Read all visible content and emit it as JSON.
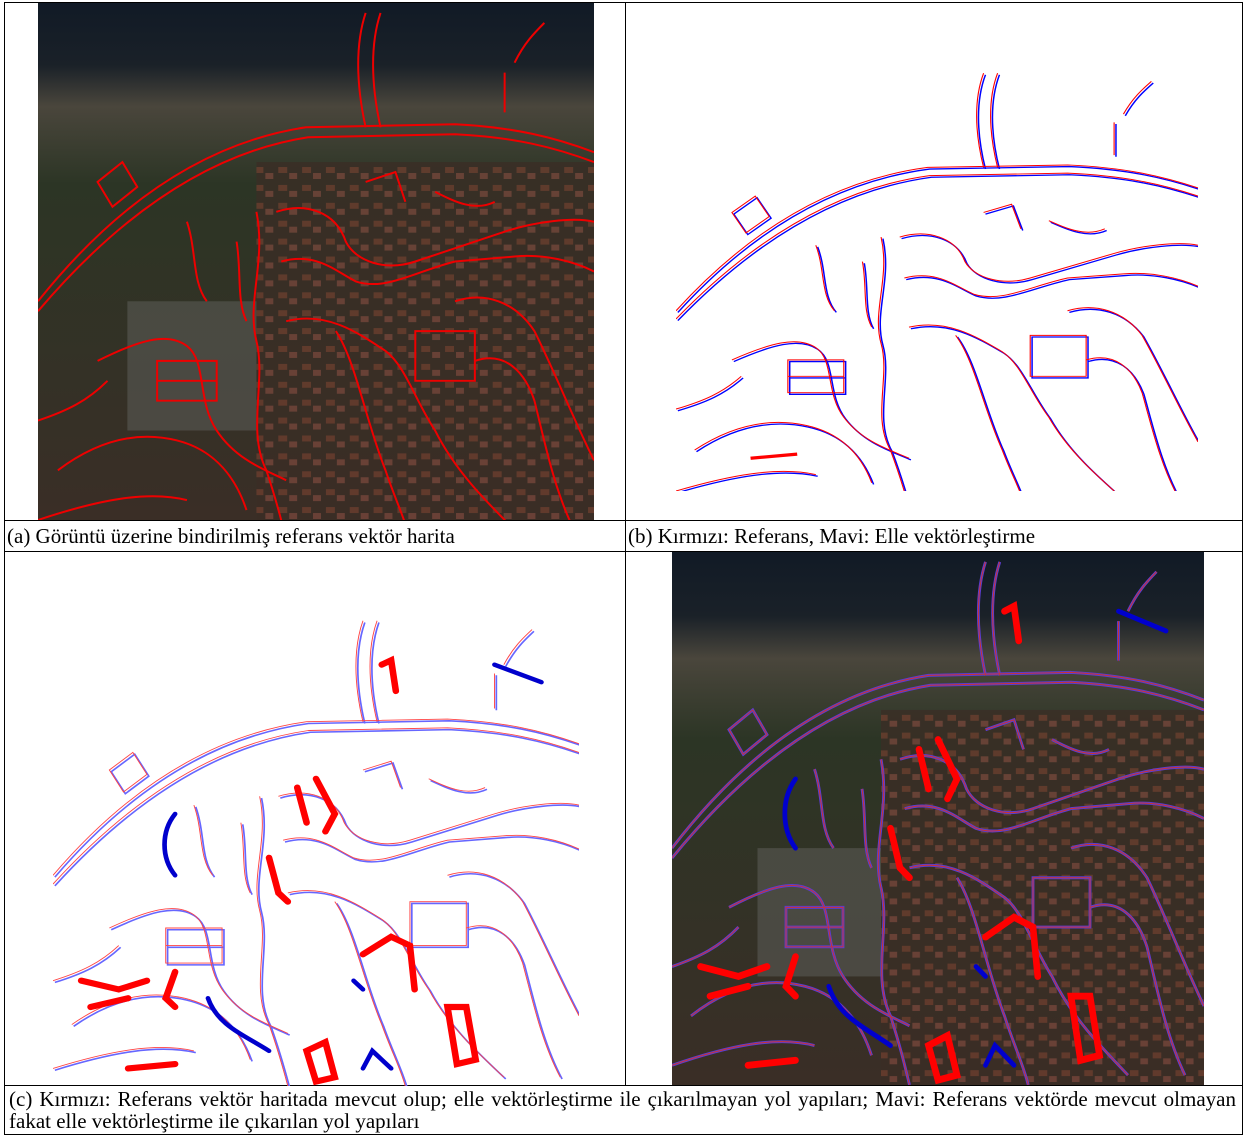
{
  "figure": {
    "captions": {
      "a": "(a) Görüntü üzerine bindirilmiş referans vektör harita",
      "b": "(b) Kırmızı: Referans, Mavi: Elle vektörleştirme",
      "c": "(c) Kırmızı: Referans vektör haritada mevcut olup; elle vektörleştirme ile çıkarılmayan yol yapıları; Mavi: Referans vektörde mevcut olmayan fakat elle vektörleştirme ile çıkarılan yol yapıları"
    }
  }
}
